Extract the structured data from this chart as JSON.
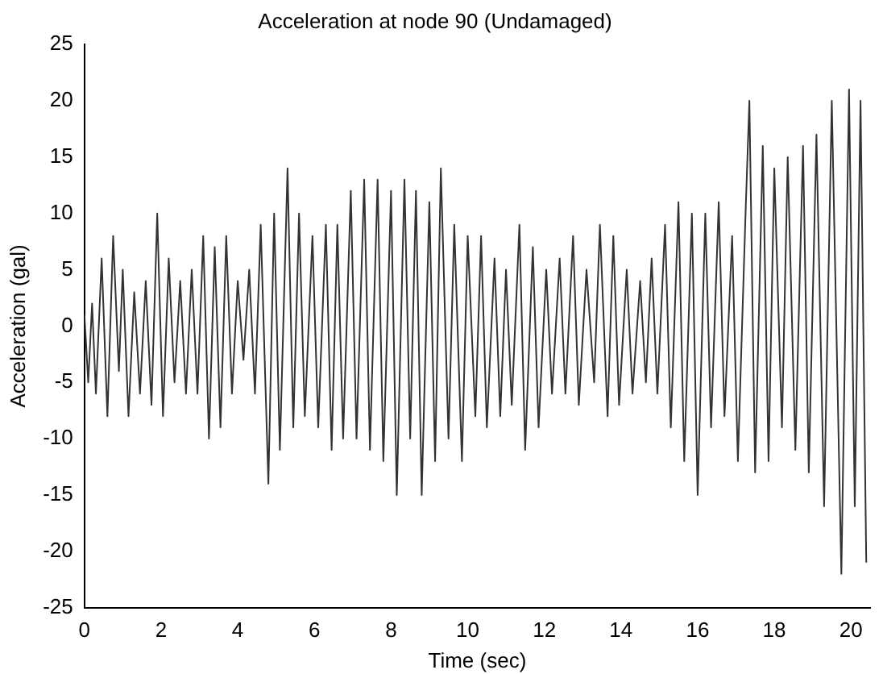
{
  "chart_data": {
    "type": "line",
    "title": "Acceleration at node 90 (Undamaged)",
    "xlabel": "Time (sec)",
    "ylabel": "Acceleration (gal)",
    "x": [
      0,
      0.1,
      0.2,
      0.3,
      0.45,
      0.6,
      0.75,
      0.9,
      1.0,
      1.15,
      1.3,
      1.45,
      1.6,
      1.75,
      1.9,
      2.05,
      2.2,
      2.35,
      2.5,
      2.65,
      2.8,
      2.95,
      3.1,
      3.25,
      3.4,
      3.55,
      3.7,
      3.85,
      4.0,
      4.15,
      4.3,
      4.45,
      4.6,
      4.8,
      4.95,
      5.1,
      5.3,
      5.45,
      5.6,
      5.75,
      5.95,
      6.1,
      6.3,
      6.45,
      6.6,
      6.75,
      6.95,
      7.1,
      7.3,
      7.45,
      7.65,
      7.8,
      8.0,
      8.15,
      8.35,
      8.5,
      8.65,
      8.8,
      9.0,
      9.15,
      9.3,
      9.5,
      9.65,
      9.85,
      10.0,
      10.2,
      10.35,
      10.5,
      10.7,
      10.85,
      11.0,
      11.15,
      11.35,
      11.5,
      11.7,
      11.85,
      12.05,
      12.2,
      12.4,
      12.55,
      12.75,
      12.9,
      13.1,
      13.3,
      13.45,
      13.65,
      13.8,
      13.95,
      14.15,
      14.3,
      14.5,
      14.65,
      14.8,
      14.95,
      15.15,
      15.3,
      15.5,
      15.65,
      15.85,
      16.0,
      16.2,
      16.35,
      16.55,
      16.7,
      16.9,
      17.05,
      17.25,
      17.35,
      17.5,
      17.7,
      17.85,
      18.0,
      18.2,
      18.35,
      18.55,
      18.75,
      18.9,
      19.1,
      19.3,
      19.5,
      19.75,
      19.95,
      20.1,
      20.25,
      20.4
    ],
    "series": [
      {
        "color": "#333333",
        "values": [
          1,
          -5,
          2,
          -6,
          6,
          -8,
          8,
          -4,
          5,
          -8,
          3,
          -6,
          4,
          -7,
          10,
          -8,
          6,
          -5,
          4,
          -6,
          5,
          -6,
          8,
          -10,
          7,
          -9,
          8,
          -6,
          4,
          -3,
          5,
          -6,
          9,
          -14,
          10,
          -11,
          14,
          -9,
          10,
          -8,
          8,
          -9,
          9,
          -11,
          9,
          -10,
          12,
          -10,
          13,
          -11,
          13,
          -12,
          12,
          -15,
          13,
          -10,
          12,
          -15,
          11,
          -12,
          14,
          -10,
          9,
          -12,
          8,
          -8,
          8,
          -9,
          6,
          -8,
          5,
          -7,
          9,
          -11,
          7,
          -9,
          5,
          -6,
          6,
          -6,
          8,
          -7,
          5,
          -5,
          9,
          -8,
          8,
          -7,
          5,
          -6,
          4,
          -5,
          6,
          -6,
          9,
          -9,
          11,
          -12,
          10,
          -15,
          10,
          -9,
          11,
          -8,
          8,
          -12,
          10,
          20,
          -13,
          16,
          -12,
          14,
          -9,
          15,
          -11,
          16,
          -13,
          17,
          -16,
          20,
          -22,
          21,
          -16,
          20,
          -21
        ]
      }
    ],
    "xlim": [
      0,
      20.5
    ],
    "xticks": [
      0,
      2,
      4,
      6,
      8,
      10,
      12,
      14,
      16,
      18,
      20
    ],
    "ylim": [
      -25,
      25
    ],
    "yticks": [
      -25,
      -20,
      -15,
      -10,
      -5,
      0,
      5,
      10,
      15,
      20,
      25
    ],
    "grid": false,
    "legend": false
  }
}
